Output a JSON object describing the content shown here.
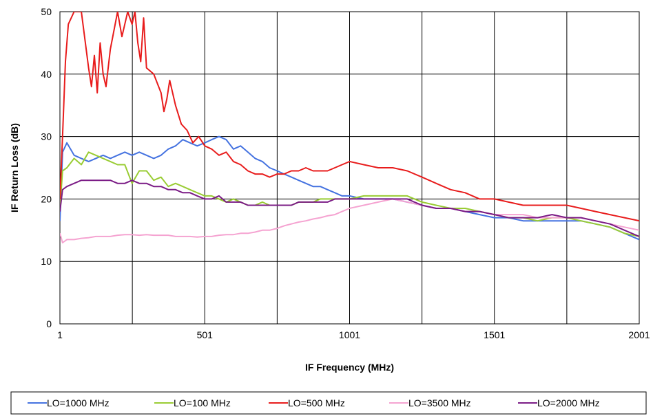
{
  "chart_data": {
    "type": "line",
    "title": "",
    "xlabel": "IF Frequency (MHz)",
    "ylabel": "IF Return Loss (dB)",
    "xlim": [
      1,
      2001
    ],
    "ylim": [
      0,
      50
    ],
    "x_ticks": [
      1,
      251,
      501,
      751,
      1001,
      1251,
      1501,
      1751,
      2001
    ],
    "x_tick_labels": [
      "1",
      "501",
      "1001",
      "1501",
      "2001"
    ],
    "x_tick_label_values": [
      1,
      501,
      1001,
      1501,
      2001
    ],
    "y_ticks": [
      0,
      10,
      20,
      30,
      40,
      50
    ],
    "y_tick_labels": [
      "0",
      "10",
      "20",
      "30",
      "40",
      "50"
    ],
    "grid": true,
    "legend_position": "bottom",
    "series": [
      {
        "name": "LO=1000 MHz",
        "color": "#4472E0",
        "x": [
          1,
          10,
          25,
          50,
          75,
          100,
          125,
          150,
          175,
          200,
          225,
          250,
          275,
          300,
          325,
          350,
          375,
          400,
          425,
          450,
          475,
          501,
          525,
          550,
          575,
          600,
          625,
          650,
          675,
          700,
          725,
          751,
          775,
          800,
          825,
          850,
          875,
          900,
          925,
          950,
          975,
          1001,
          1050,
          1100,
          1150,
          1200,
          1251,
          1300,
          1350,
          1400,
          1450,
          1501,
          1550,
          1600,
          1650,
          1700,
          1751,
          1800,
          1850,
          1900,
          1950,
          2001
        ],
        "y": [
          16.5,
          27.5,
          29,
          27,
          26.5,
          26,
          26.5,
          27,
          26.5,
          27,
          27.5,
          27,
          27.5,
          27,
          26.5,
          27,
          28,
          28.5,
          29.5,
          29,
          28.5,
          29,
          29.5,
          30,
          29.5,
          28,
          28.5,
          27.5,
          26.5,
          26,
          25,
          24.5,
          24,
          23.5,
          23,
          22.5,
          22,
          22,
          21.5,
          21,
          20.5,
          20.5,
          20,
          20,
          20,
          19.5,
          19,
          18.5,
          18.5,
          18,
          17.5,
          17,
          17,
          16.5,
          16.5,
          16.5,
          16.5,
          16.5,
          16,
          15.5,
          14.5,
          13.5
        ]
      },
      {
        "name": "LO=100 MHz",
        "color": "#99CC33",
        "x": [
          1,
          10,
          25,
          50,
          75,
          100,
          125,
          150,
          175,
          200,
          225,
          250,
          275,
          300,
          325,
          350,
          375,
          400,
          425,
          450,
          475,
          501,
          525,
          550,
          575,
          600,
          625,
          650,
          675,
          700,
          725,
          751,
          775,
          800,
          825,
          850,
          875,
          900,
          925,
          950,
          975,
          1001,
          1050,
          1100,
          1150,
          1200,
          1251,
          1300,
          1350,
          1400,
          1450,
          1501,
          1550,
          1600,
          1650,
          1700,
          1751,
          1800,
          1850,
          1900,
          1950,
          2001
        ],
        "y": [
          18.5,
          24.5,
          25,
          26.5,
          25.5,
          27.5,
          27,
          26.5,
          26,
          25.5,
          25.5,
          22.5,
          24.5,
          24.5,
          23,
          23.5,
          22,
          22.5,
          22,
          21.5,
          21,
          20.5,
          20.5,
          20,
          19.5,
          20,
          19.5,
          19,
          19,
          19.5,
          19,
          19,
          19,
          19,
          19.5,
          19.5,
          19.5,
          20,
          20,
          20,
          20,
          20,
          20.5,
          20.5,
          20.5,
          20.5,
          19.5,
          19,
          18.5,
          18.5,
          18,
          17.5,
          17,
          17,
          16.5,
          17,
          17,
          16.5,
          16,
          15.5,
          14.5,
          14
        ]
      },
      {
        "name": "LO=500 MHz",
        "color": "#E81C1C",
        "x": [
          1,
          10,
          20,
          30,
          50,
          75,
          100,
          110,
          120,
          130,
          140,
          150,
          160,
          175,
          200,
          215,
          225,
          235,
          250,
          260,
          270,
          280,
          290,
          300,
          325,
          350,
          360,
          370,
          380,
          400,
          420,
          440,
          460,
          480,
          501,
          525,
          550,
          575,
          600,
          625,
          650,
          675,
          700,
          725,
          751,
          775,
          800,
          825,
          850,
          875,
          900,
          925,
          950,
          975,
          1001,
          1050,
          1100,
          1150,
          1200,
          1251,
          1300,
          1350,
          1400,
          1450,
          1501,
          1550,
          1600,
          1650,
          1700,
          1751,
          1800,
          1850,
          1900,
          1950,
          2001
        ],
        "y": [
          20,
          30,
          42,
          48,
          54,
          50,
          41,
          38,
          43,
          37,
          45,
          40,
          38,
          44,
          50,
          46,
          48,
          52,
          48,
          50,
          45,
          42,
          49,
          41,
          40,
          37,
          34,
          36,
          39,
          35,
          32,
          31,
          29,
          30,
          28.5,
          28,
          27,
          27.5,
          26,
          25.5,
          24.5,
          24,
          24,
          23.5,
          24,
          24,
          24.5,
          24.5,
          25,
          24.5,
          24.5,
          24.5,
          25,
          25.5,
          26,
          25.5,
          25,
          25,
          24.5,
          23.5,
          22.5,
          21.5,
          21,
          20,
          20,
          19.5,
          19,
          19,
          19,
          19,
          18.5,
          18,
          17.5,
          17,
          16.5
        ]
      },
      {
        "name": "LO=3500 MHz",
        "color": "#F5A3D1",
        "x": [
          1,
          10,
          25,
          50,
          75,
          100,
          125,
          150,
          175,
          200,
          225,
          250,
          275,
          300,
          325,
          350,
          375,
          400,
          425,
          450,
          475,
          501,
          525,
          550,
          575,
          600,
          625,
          650,
          675,
          700,
          725,
          751,
          775,
          800,
          825,
          850,
          875,
          900,
          925,
          950,
          975,
          1001,
          1050,
          1100,
          1150,
          1200,
          1251,
          1300,
          1350,
          1400,
          1450,
          1501,
          1550,
          1600,
          1650,
          1700,
          1751,
          1800,
          1850,
          1900,
          1950,
          2001
        ],
        "y": [
          14.5,
          13,
          13.5,
          13.5,
          13.7,
          13.8,
          14,
          14,
          14,
          14.2,
          14.3,
          14.3,
          14.2,
          14.3,
          14.2,
          14.2,
          14.2,
          14,
          14,
          14,
          13.9,
          14,
          14,
          14.2,
          14.3,
          14.3,
          14.5,
          14.5,
          14.7,
          15,
          15,
          15.3,
          15.7,
          16,
          16.3,
          16.5,
          16.8,
          17,
          17.3,
          17.5,
          18,
          18.5,
          19,
          19.5,
          20,
          19.5,
          19,
          18.5,
          18.5,
          18,
          18,
          17.5,
          17.5,
          17.5,
          17,
          17,
          17,
          17,
          16.5,
          16,
          15.5,
          15
        ]
      },
      {
        "name": "LO=2000 MHz",
        "color": "#7B1C86",
        "x": [
          1,
          10,
          25,
          50,
          75,
          100,
          125,
          150,
          175,
          200,
          225,
          250,
          275,
          300,
          325,
          350,
          375,
          400,
          425,
          450,
          475,
          501,
          525,
          550,
          575,
          600,
          625,
          650,
          675,
          700,
          725,
          751,
          775,
          800,
          825,
          850,
          875,
          900,
          925,
          950,
          975,
          1001,
          1050,
          1100,
          1150,
          1200,
          1251,
          1300,
          1350,
          1400,
          1450,
          1501,
          1550,
          1600,
          1650,
          1700,
          1751,
          1800,
          1850,
          1900,
          1950,
          2001
        ],
        "y": [
          18,
          21.5,
          22,
          22.5,
          23,
          23,
          23,
          23,
          23,
          22.5,
          22.5,
          23,
          22.5,
          22.5,
          22,
          22,
          21.5,
          21.5,
          21,
          21,
          20.5,
          20,
          20,
          20.5,
          19.5,
          19.5,
          19.5,
          19,
          19,
          19,
          19,
          19,
          19,
          19,
          19.5,
          19.5,
          19.5,
          19.5,
          19.5,
          20,
          20,
          20,
          20,
          20,
          20,
          20,
          19,
          18.5,
          18.5,
          18,
          18,
          17.5,
          17,
          17,
          17,
          17.5,
          17,
          17,
          16.5,
          16,
          15,
          14
        ]
      }
    ]
  }
}
